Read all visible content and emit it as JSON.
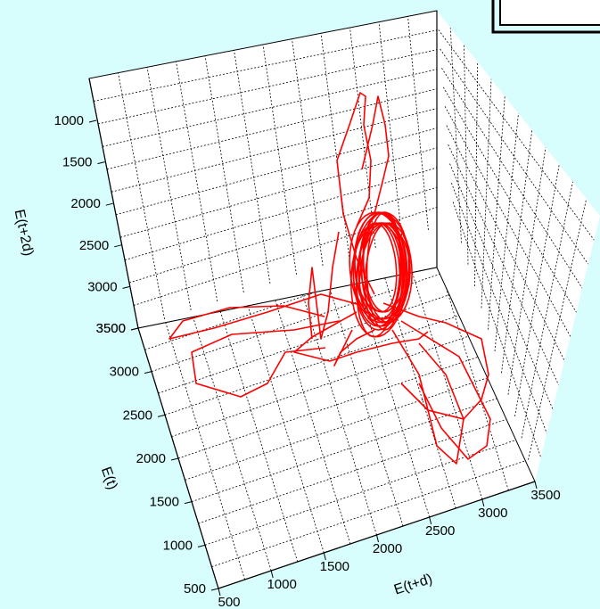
{
  "chart_data": {
    "type": "line",
    "title": "",
    "projection": "3d",
    "grid": true,
    "legend": "top-right",
    "axes": {
      "x": {
        "label": "E(t+d)",
        "range": [
          500,
          3500
        ],
        "ticks": [
          "500",
          "1000",
          "1500",
          "2000",
          "2500",
          "3000",
          "3500"
        ]
      },
      "y": {
        "label": "E(t)",
        "range": [
          500,
          3500
        ],
        "ticks": [
          "500",
          "1000",
          "1500",
          "2000",
          "2500",
          "3000",
          "3500"
        ]
      },
      "z": {
        "label": "E(t+2d)",
        "range": [
          3500,
          1000
        ],
        "ticks": [
          "1000",
          "1500",
          "2000",
          "2500",
          "3000",
          "3500"
        ]
      }
    },
    "series": [
      {
        "name": "",
        "color": "#ff0000"
      }
    ]
  }
}
